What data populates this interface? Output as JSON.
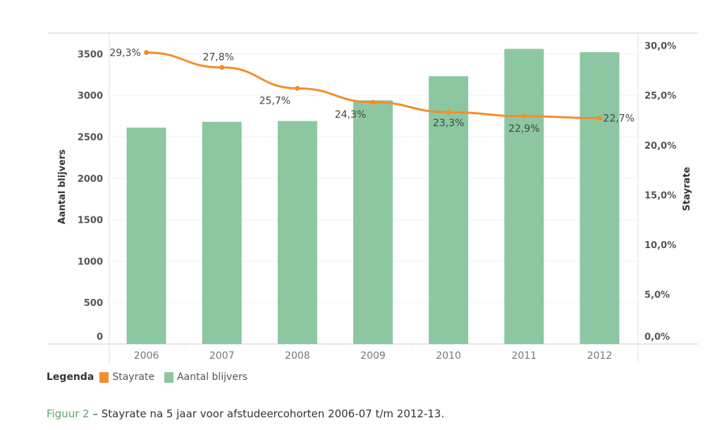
{
  "chart_data": {
    "type": "bar+line",
    "categories": [
      "2006",
      "2007",
      "2008",
      "2009",
      "2010",
      "2011",
      "2012"
    ],
    "series": [
      {
        "name": "Aantal blijvers",
        "type": "bar",
        "axis": "left",
        "color": "#8cc7a1",
        "values": [
          2610,
          2680,
          2690,
          2940,
          3230,
          3560,
          3520
        ]
      },
      {
        "name": "Stayrate",
        "type": "line",
        "axis": "right",
        "color": "#f28e2b",
        "values": [
          29.3,
          27.8,
          25.7,
          24.3,
          23.3,
          22.9,
          22.7
        ],
        "labels": [
          "29,3%",
          "27,8%",
          "25,7%",
          "24,3%",
          "23,3%",
          "22,9%",
          "22,7%"
        ]
      }
    ],
    "ylabel_left": "Aantal blijvers",
    "ylabel_right": "Stayrate",
    "ylim_left": [
      0,
      3750
    ],
    "ylim_right": [
      0,
      31.25
    ],
    "yticks_left": [
      "0",
      "500",
      "1000",
      "1500",
      "2000",
      "2500",
      "3000",
      "3500"
    ],
    "yticks_right": [
      "0,0%",
      "5,0%",
      "10,0%",
      "15,0%",
      "20,0%",
      "25,0%",
      "30,0%"
    ],
    "grid": true,
    "legend_position": "bottom-left"
  },
  "legend": {
    "title": "Legenda",
    "items": [
      "Stayrate",
      "Aantal blijvers"
    ],
    "colors": [
      "#f28e2b",
      "#8cc7a1"
    ]
  },
  "caption": {
    "figure": "Figuur 2",
    "text": " – Stayrate na 5 jaar voor afstudeercohorten 2006-07 t/m 2012-13."
  }
}
